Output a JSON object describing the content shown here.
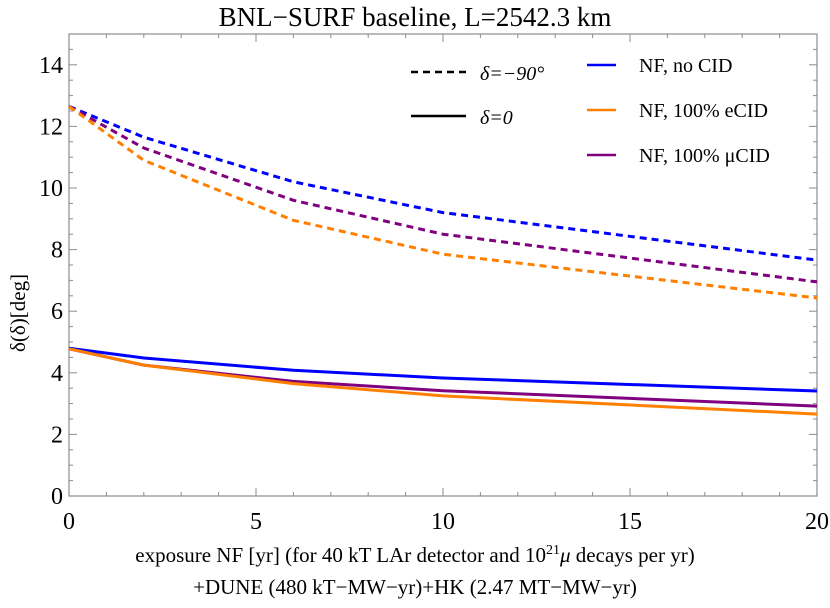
{
  "chart_data": {
    "type": "line",
    "title": "BNL−SURF baseline, L=2542.3 km",
    "xlabel": "exposure NF [yr] (for 40 kT LAr detector and 10^21 μ decays per yr)",
    "xlabel_line1_pre": "exposure NF [yr] (for 40 kT LAr detector and 10",
    "xlabel_line1_sup": "21",
    "xlabel_line1_mu": "μ",
    "xlabel_line1_post": " decays per yr)",
    "xlabel_line2": "+DUNE (480 kT−MW−yr)+HK (2.47 MT−MW−yr)",
    "ylabel": "δ(δ)[deg]",
    "xlim": [
      0,
      20
    ],
    "ylim": [
      0,
      15
    ],
    "xticks": [
      0,
      5,
      10,
      15,
      20
    ],
    "yticks": [
      0,
      2,
      4,
      6,
      8,
      10,
      12,
      14
    ],
    "grid": false,
    "legend_position": "top-right, inside",
    "x": [
      0,
      2,
      6,
      10,
      20
    ],
    "series": [
      {
        "name": "NF, no CID",
        "delta": "δ=−90°",
        "style": "dashed",
        "color": "#0000ff",
        "values": [
          12.65,
          11.65,
          10.2,
          9.2,
          7.66
        ]
      },
      {
        "name": "NF, 100% μCID",
        "delta": "δ=−90°",
        "style": "dashed",
        "color": "#800080",
        "values": [
          12.65,
          11.3,
          9.6,
          8.5,
          6.95
        ]
      },
      {
        "name": "NF, 100% eCID",
        "delta": "δ=−90°",
        "style": "dashed",
        "color": "#ff8000",
        "values": [
          12.65,
          10.9,
          8.95,
          7.85,
          6.43
        ]
      },
      {
        "name": "NF, no CID",
        "delta": "δ=0",
        "style": "solid",
        "color": "#0000ff",
        "values": [
          4.8,
          4.48,
          4.08,
          3.83,
          3.41
        ]
      },
      {
        "name": "NF, 100% μCID",
        "delta": "δ=0",
        "style": "solid",
        "color": "#800080",
        "values": [
          4.78,
          4.25,
          3.72,
          3.42,
          2.92
        ]
      },
      {
        "name": "NF, 100% eCID",
        "delta": "δ=0",
        "style": "solid",
        "color": "#ff8000",
        "values": [
          4.78,
          4.25,
          3.65,
          3.25,
          2.66
        ]
      }
    ],
    "legend_style": [
      {
        "label": "δ=−90°",
        "style": "dashed",
        "color": "#000000"
      },
      {
        "label": "δ=0",
        "style": "solid",
        "color": "#000000"
      }
    ],
    "legend_color": [
      {
        "label": "NF, no CID",
        "color": "#0000ff"
      },
      {
        "label": "NF, 100% eCID",
        "color": "#ff8000"
      },
      {
        "label": "NF, 100% μCID",
        "color": "#800080"
      }
    ]
  }
}
